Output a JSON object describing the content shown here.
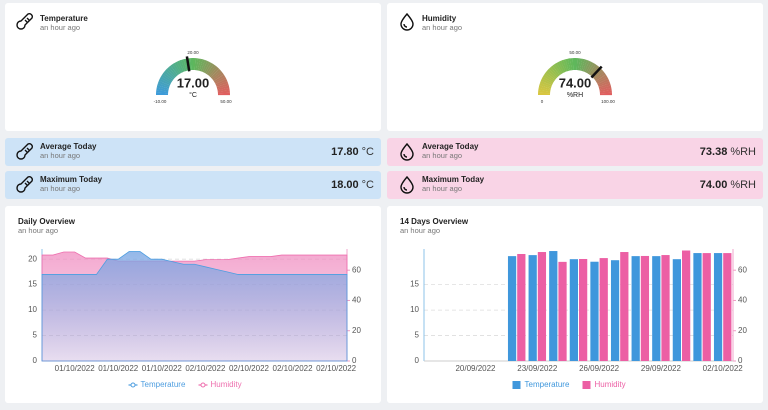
{
  "gauges": [
    {
      "title": "Temperature",
      "time": "an hour ago",
      "value": 17,
      "value_label": "17.00",
      "unit": "°C",
      "min": -10,
      "max": 50,
      "ticks": [
        {
          "value": -10,
          "label": "-10.00"
        },
        {
          "value": 20,
          "label": "20.00"
        },
        {
          "value": 50,
          "label": "50.00"
        }
      ],
      "colors": [
        "#3d9bd9",
        "#5cb85c",
        "#e05f5f"
      ]
    },
    {
      "title": "Humidity",
      "time": "an hour ago",
      "value": 74,
      "value_label": "74.00",
      "unit": "%RH",
      "min": 0,
      "max": 100,
      "ticks": [
        {
          "value": 0,
          "label": "0"
        },
        {
          "value": 50,
          "label": "50.00"
        },
        {
          "value": 100,
          "label": "100.00"
        }
      ],
      "colors": [
        "#d8c640",
        "#5cb85c",
        "#e05f5f"
      ]
    }
  ],
  "stats": [
    {
      "title": "Average Today",
      "time": "an hour ago",
      "value": "17.80",
      "unit": "°C",
      "color": "#cde3f7"
    },
    {
      "title": "Maximum Today",
      "time": "an hour ago",
      "value": "18.00",
      "unit": "°C",
      "color": "#cde3f7"
    },
    {
      "title": "Average Today",
      "time": "an hour ago",
      "value": "73.38",
      "unit": "%RH",
      "color": "#f9d4e6"
    },
    {
      "title": "Maximum Today",
      "time": "an hour ago",
      "value": "74.00",
      "unit": "%RH",
      "color": "#f9d4e6"
    }
  ],
  "chart_data": [
    {
      "type": "area",
      "title": "Daily Overview",
      "subtitle": "an hour ago",
      "categories": [
        null,
        null,
        null,
        "01/10/2022",
        null,
        null,
        null,
        "01/10/2022",
        null,
        null,
        null,
        "01/10/2022",
        null,
        null,
        null,
        "02/10/2022",
        null,
        null,
        null,
        "02/10/2022",
        null,
        null,
        null,
        "02/10/2022",
        null,
        null,
        null,
        "02/10/2022",
        null
      ],
      "series": [
        {
          "name": "Temperature",
          "color": "#4e9ee0",
          "axis": "y",
          "values": [
            17,
            17,
            17,
            17,
            17,
            17,
            20,
            20,
            21.5,
            21.5,
            20,
            20,
            19.5,
            19,
            19,
            18.5,
            18,
            17.5,
            17,
            17,
            17,
            17,
            17,
            17,
            17,
            17,
            17,
            17,
            17
          ]
        },
        {
          "name": "Humidity",
          "color": "#ee6fae",
          "axis": "y2",
          "values": [
            70,
            70,
            72,
            72,
            68,
            68,
            68,
            66,
            66,
            66,
            66,
            66,
            66,
            66,
            66,
            67,
            67,
            67,
            68,
            69,
            69,
            69,
            70,
            70,
            70,
            70,
            70,
            70,
            70
          ]
        }
      ],
      "ylim": [
        0,
        22
      ],
      "yticks": [
        0,
        5,
        10,
        15,
        20
      ],
      "y2lim": [
        0,
        74
      ],
      "y2ticks": [
        0,
        20,
        40,
        60
      ],
      "grid": true,
      "legend": "bottom"
    },
    {
      "type": "bar",
      "title": "14 Days Overview",
      "subtitle": "an hour ago",
      "categories": [
        null,
        null,
        "20/09/2022",
        null,
        null,
        "23/09/2022",
        null,
        null,
        "26/09/2022",
        null,
        null,
        "29/09/2022",
        null,
        null,
        "02/10/2022"
      ],
      "series": [
        {
          "name": "Temperature",
          "color": "#3f97dc",
          "axis": "y",
          "values": [
            null,
            null,
            null,
            null,
            20.6,
            20.8,
            21.6,
            20.0,
            19.5,
            19.8,
            20.6,
            20.6,
            20.0,
            21.2,
            21.2
          ]
        },
        {
          "name": "Humidity",
          "color": "#ec5fa4",
          "axis": "y2",
          "values": [
            null,
            null,
            null,
            null,
            70.7,
            72,
            65.5,
            67.4,
            68,
            72,
            69.4,
            70,
            73,
            71.3,
            71.3
          ]
        }
      ],
      "ylim": [
        0,
        22
      ],
      "yticks": [
        0,
        5,
        10,
        15
      ],
      "y2lim": [
        0,
        74
      ],
      "y2ticks": [
        0,
        20,
        40,
        60
      ],
      "grid": true,
      "legend": "bottom"
    }
  ]
}
